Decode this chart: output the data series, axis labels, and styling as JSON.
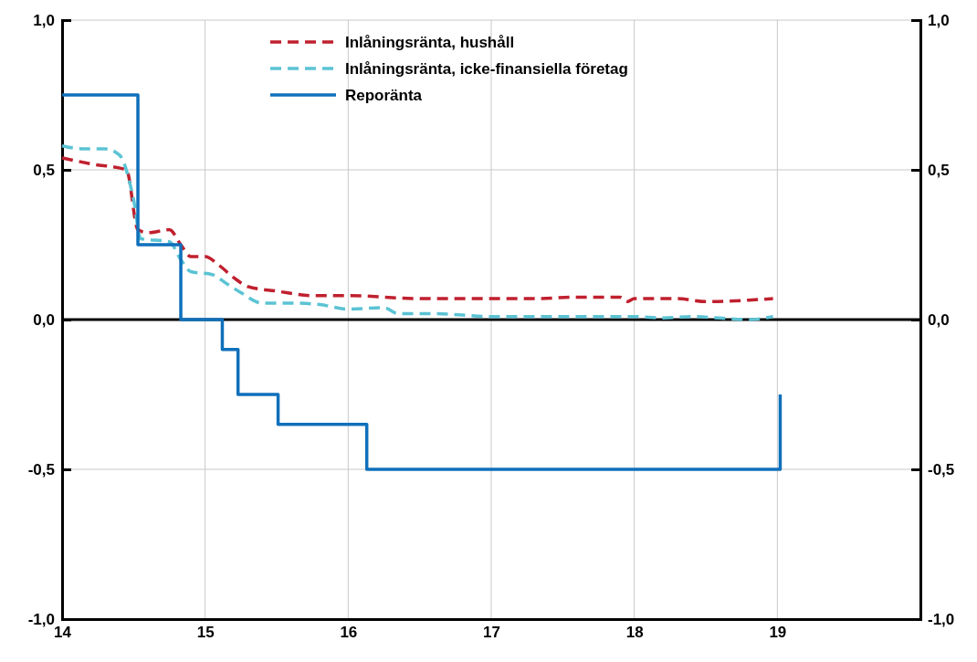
{
  "chart_data": {
    "type": "line",
    "xlim": [
      14,
      20
    ],
    "xticks": [
      14,
      15,
      16,
      17,
      18,
      19,
      {
        "value": 20,
        "label": null
      }
    ],
    "ylim": [
      -1,
      1
    ],
    "yticks": [
      {
        "value": -1,
        "label": "-1,0"
      },
      {
        "value": -0.5,
        "label": "-0,5"
      },
      {
        "value": 0,
        "label": "0,0"
      },
      {
        "value": 0.5,
        "label": "0,5"
      },
      {
        "value": 1,
        "label": "1,0"
      }
    ],
    "y2lim": [
      -1,
      1
    ],
    "y2ticks": [
      {
        "value": -1,
        "label": "-1,0"
      },
      {
        "value": -0.5,
        "label": "-0,5"
      },
      {
        "value": 0,
        "label": "0,0"
      },
      {
        "value": 0.5,
        "label": "0,5"
      },
      {
        "value": 1,
        "label": "1,0"
      }
    ],
    "grid": true,
    "legend": "top",
    "ref_lines": [
      {
        "axis": "y",
        "value": 0,
        "color": "#000000"
      }
    ],
    "series": [
      {
        "name": "Inlåningsränta, hushåll",
        "color": "#c0202e",
        "line_style": "dashed",
        "x": [
          14.0,
          14.2,
          14.45,
          14.53,
          14.6,
          14.75,
          14.83,
          14.9,
          15.0,
          15.1,
          15.2,
          15.3,
          15.5,
          15.75,
          16.0,
          16.5,
          17.0,
          17.3,
          17.6,
          17.9,
          17.95,
          18.0,
          18.3,
          18.5,
          18.8,
          18.97
        ],
        "values": [
          0.54,
          0.52,
          0.5,
          0.3,
          0.29,
          0.3,
          0.25,
          0.21,
          0.21,
          0.18,
          0.14,
          0.11,
          0.095,
          0.08,
          0.08,
          0.07,
          0.07,
          0.07,
          0.075,
          0.075,
          0.06,
          0.07,
          0.07,
          0.06,
          0.065,
          0.07
        ]
      },
      {
        "name": "Inlåningsränta, icke-finansiella företag",
        "color": "#5bc3d4",
        "line_style": "dashed",
        "x": [
          14.0,
          14.15,
          14.3,
          14.4,
          14.5,
          14.55,
          14.75,
          14.83,
          14.9,
          15.05,
          15.15,
          15.25,
          15.4,
          15.6,
          15.8,
          16.0,
          16.25,
          16.35,
          16.6,
          17.0,
          17.5,
          18.0,
          18.2,
          18.4,
          18.6,
          18.8,
          18.97
        ],
        "values": [
          0.58,
          0.57,
          0.57,
          0.55,
          0.4,
          0.27,
          0.26,
          0.2,
          0.16,
          0.15,
          0.12,
          0.09,
          0.055,
          0.055,
          0.05,
          0.035,
          0.04,
          0.02,
          0.02,
          0.01,
          0.01,
          0.01,
          0.005,
          0.01,
          0.005,
          0.0,
          0.01
        ]
      },
      {
        "name": "Reporänta",
        "color": "#0f70bb",
        "type": "step",
        "line_style": "solid",
        "x": [
          14.0,
          14.53,
          14.83,
          15.12,
          15.23,
          15.51,
          16.13,
          19.02
        ],
        "values": [
          0.75,
          0.25,
          0.0,
          -0.1,
          -0.25,
          -0.35,
          -0.5,
          -0.25
        ]
      }
    ]
  }
}
